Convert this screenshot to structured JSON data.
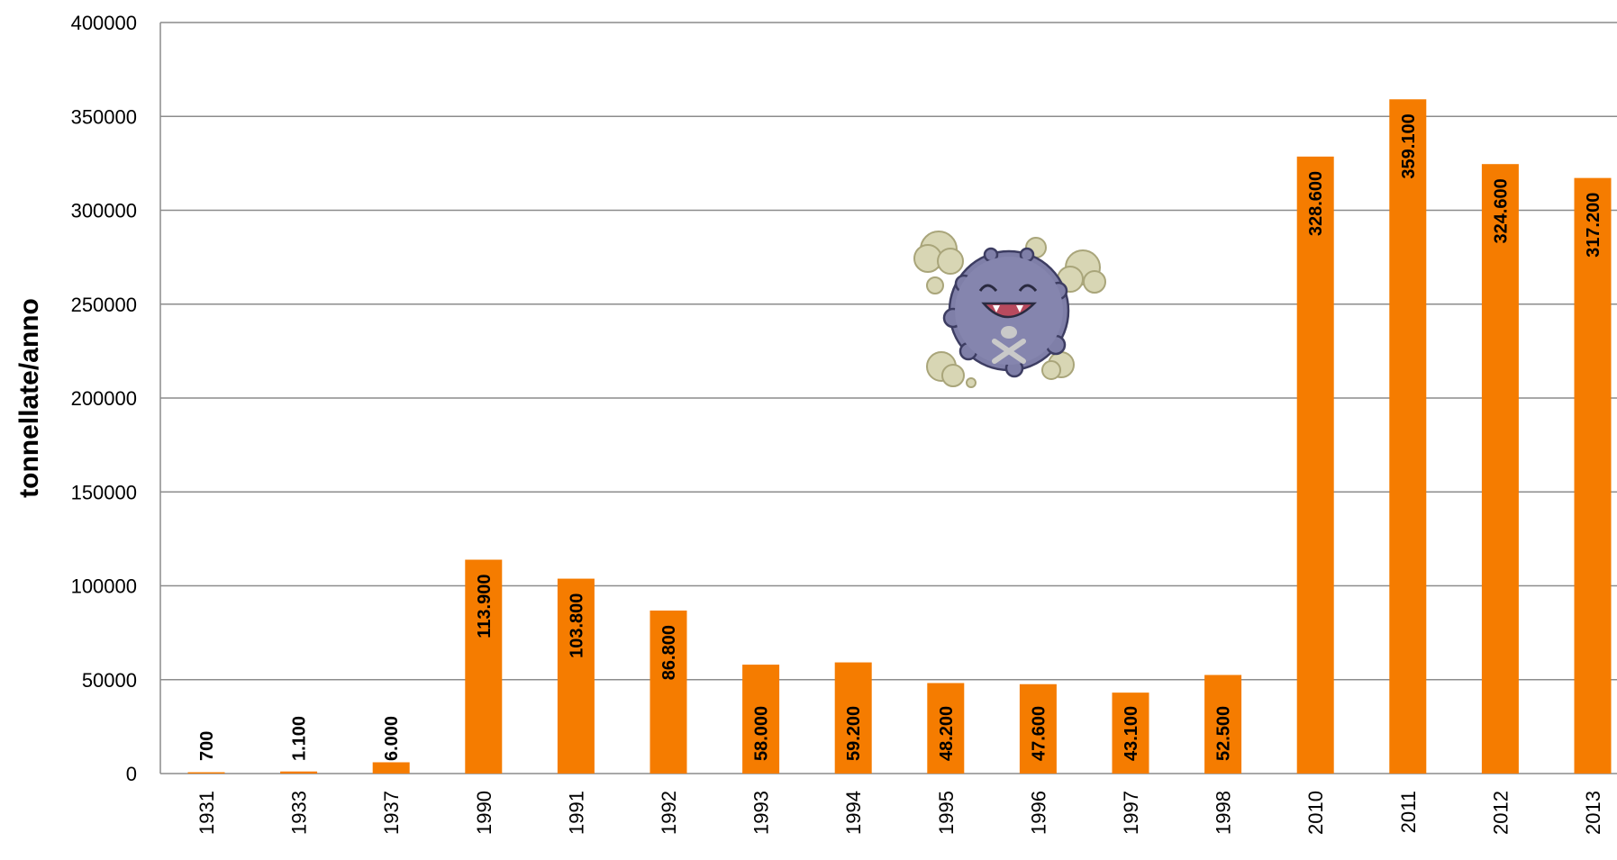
{
  "chart_data": {
    "type": "bar",
    "ylabel": "tonnellate/anno",
    "xlabel": "",
    "categories": [
      "1931",
      "1933",
      "1937",
      "1990",
      "1991",
      "1992",
      "1993",
      "1994",
      "1995",
      "1996",
      "1997",
      "1998",
      "2010",
      "2011",
      "2012",
      "2013"
    ],
    "values": [
      700,
      1100,
      6000,
      113900,
      103800,
      86800,
      58000,
      59200,
      48200,
      47600,
      43100,
      52500,
      328600,
      359100,
      324600,
      317200
    ],
    "data_labels": [
      "700",
      "1.100",
      "6.000",
      "113.900",
      "103.800",
      "86.800",
      "58.000",
      "59.200",
      "48.200",
      "47.600",
      "43.100",
      "52.500",
      "328.600",
      "359.100",
      "324.600",
      "317.200"
    ],
    "ylim": [
      0,
      400000
    ],
    "yticks": [
      "0",
      "50000",
      "100000",
      "150000",
      "200000",
      "250000",
      "300000",
      "350000",
      "400000"
    ],
    "grid": true,
    "bar_color": "#F57C00",
    "grid_color": "#8C8C8C",
    "decoration_icon": "smog-creature-icon"
  }
}
